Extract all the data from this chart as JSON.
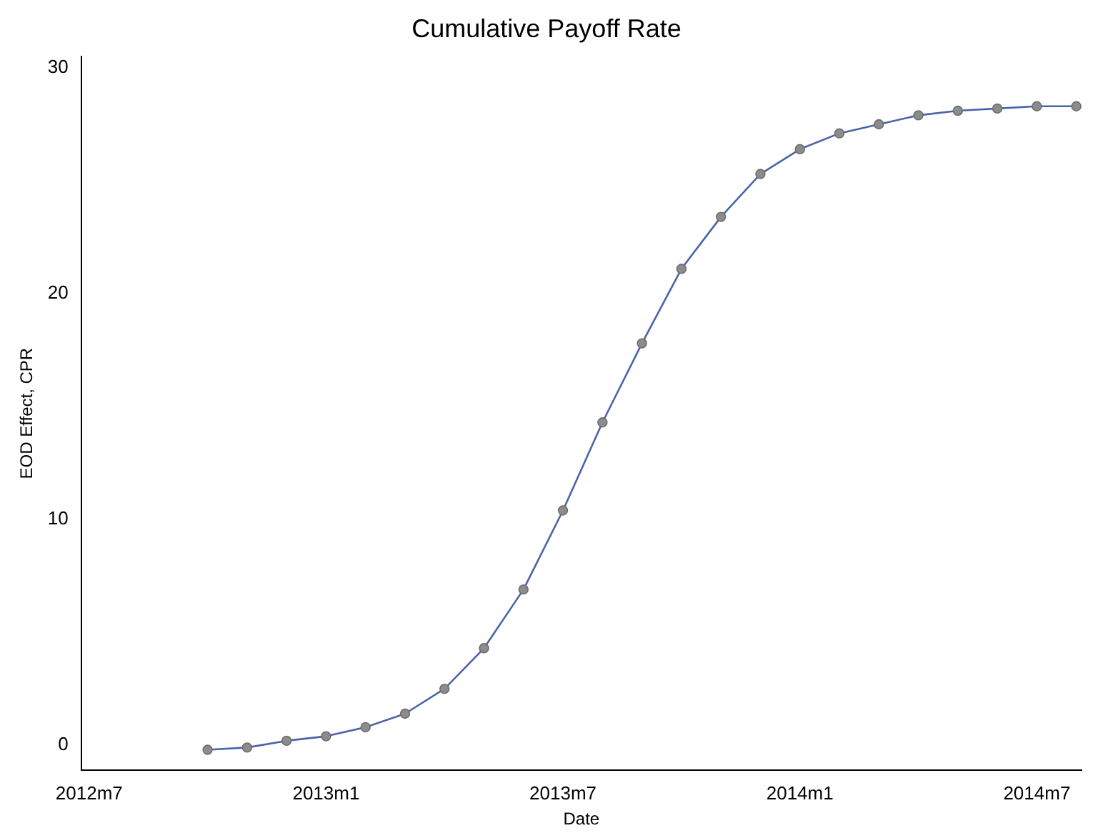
{
  "chart_data": {
    "type": "line",
    "title": "Cumulative Payoff Rate",
    "xlabel": "Date",
    "ylabel": "EOD Effect, CPR",
    "x": [
      "2012-10",
      "2012-11",
      "2012-12",
      "2013-01",
      "2013-02",
      "2013-03",
      "2013-04",
      "2013-05",
      "2013-06",
      "2013-07",
      "2013-08",
      "2013-09",
      "2013-10",
      "2013-11",
      "2013-12",
      "2014-01",
      "2014-02",
      "2014-03",
      "2014-04",
      "2014-05",
      "2014-06",
      "2014-07",
      "2014-08"
    ],
    "series": [
      {
        "color": "#4a64a8",
        "values": [
          -0.2,
          -0.1,
          0.2,
          0.4,
          0.8,
          1.4,
          2.5,
          4.3,
          6.9,
          10.4,
          14.3,
          17.8,
          21.1,
          23.4,
          25.3,
          26.4,
          27.1,
          27.5,
          27.9,
          28.1,
          28.2,
          28.3,
          28.3
        ]
      }
    ],
    "xlim": [
      "2012-06-25",
      "2014-08-05"
    ],
    "xticks": [
      {
        "value": "2012-07",
        "label": "2012m7"
      },
      {
        "value": "2013-01",
        "label": "2013m1"
      },
      {
        "value": "2013-07",
        "label": "2013m7"
      },
      {
        "value": "2014-01",
        "label": "2014m1"
      },
      {
        "value": "2014-07",
        "label": "2014m7"
      }
    ],
    "ylim": [
      -1.1,
      30.5
    ],
    "yticks": [
      0,
      10,
      20,
      30
    ],
    "grid": false,
    "legend": false,
    "marker": "circle",
    "line_style": "solid"
  }
}
